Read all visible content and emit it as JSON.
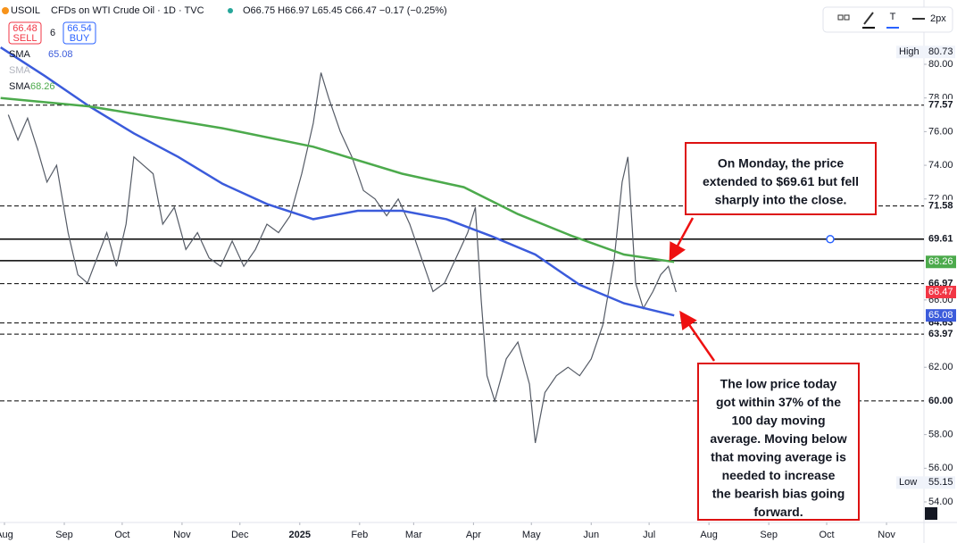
{
  "chart_data": {
    "type": "line",
    "title": "CFDs on WTI Crude Oil · 1D · TVC",
    "quote": "O66.75 H66.97 L65.45 C66.47 −0.17 (−0.25%)",
    "sell": {
      "price": 66.48,
      "label": "SELL"
    },
    "spread": 6,
    "buy": {
      "price": 66.54,
      "label": "BUY"
    },
    "toolbar_width": "2px",
    "xlim": [
      -2.31,
      476.4
    ],
    "ylim": [
      52.78,
      83.82
    ],
    "xticks": [
      {
        "value": 0,
        "label": "Aug"
      },
      {
        "value": 31,
        "label": "Sep"
      },
      {
        "value": 61,
        "label": "Oct"
      },
      {
        "value": 92,
        "label": "Nov"
      },
      {
        "value": 122,
        "label": "Dec"
      },
      {
        "value": 153,
        "label": "2025"
      },
      {
        "value": 184,
        "label": "Feb"
      },
      {
        "value": 212,
        "label": "Mar"
      },
      {
        "value": 243,
        "label": "Apr"
      },
      {
        "value": 273,
        "label": "May"
      },
      {
        "value": 304,
        "label": "Jun"
      },
      {
        "value": 334,
        "label": "Jul"
      },
      {
        "value": 365,
        "label": "Aug"
      },
      {
        "value": 396,
        "label": "Sep"
      },
      {
        "value": 426,
        "label": "Oct"
      },
      {
        "value": 457,
        "label": "Nov"
      }
    ],
    "yticks": [
      {
        "value": 80,
        "label": "80.00"
      },
      {
        "value": 78,
        "label": "78.00"
      },
      {
        "value": 76,
        "label": "76.00"
      },
      {
        "value": 74,
        "label": "74.00"
      },
      {
        "value": 72,
        "label": "72.00"
      },
      {
        "value": 66,
        "label": "66.00"
      },
      {
        "value": 62,
        "label": "62.00"
      },
      {
        "value": 58,
        "label": "58.00"
      },
      {
        "value": 56,
        "label": "56.00"
      },
      {
        "value": 54,
        "label": "54.00"
      }
    ],
    "grid": false,
    "series": [
      {
        "name": "USOIL",
        "color": "#555b66",
        "x": [
          2,
          7,
          12,
          17,
          22,
          27,
          33,
          38,
          43,
          48,
          53,
          58,
          63,
          67,
          72,
          77,
          82,
          88,
          94,
          100,
          106,
          112,
          118,
          124,
          130,
          136,
          142,
          148,
          154,
          160,
          164,
          168,
          174,
          180,
          186,
          192,
          198,
          204,
          210,
          216,
          222,
          228,
          234,
          240,
          244,
          247,
          250,
          254,
          260,
          266,
          272,
          275,
          280,
          286,
          292,
          298,
          304,
          310,
          316,
          320,
          323,
          327,
          331,
          336,
          340,
          344,
          348
        ],
        "values": [
          77.0,
          75.5,
          76.8,
          75.0,
          73.0,
          74.0,
          70.0,
          67.5,
          67.0,
          68.5,
          70.0,
          68.0,
          70.5,
          74.5,
          74.0,
          73.5,
          70.5,
          71.5,
          69.0,
          70.0,
          68.5,
          68.0,
          69.5,
          68.0,
          69.0,
          70.5,
          70.0,
          71.0,
          73.5,
          76.5,
          79.5,
          78.0,
          76.0,
          74.5,
          72.5,
          72.0,
          71.0,
          72.0,
          70.5,
          68.5,
          66.5,
          67.0,
          68.5,
          70.0,
          71.5,
          66.0,
          61.5,
          60.0,
          62.5,
          63.5,
          61.0,
          57.5,
          60.5,
          61.5,
          62.0,
          61.5,
          62.5,
          64.5,
          68.5,
          73.0,
          74.5,
          67.0,
          65.5,
          66.5,
          67.5,
          68.0,
          66.47
        ]
      },
      {
        "name": "SMA",
        "color": "#3b5bdb",
        "x": [
          -2,
          21,
          44,
          67,
          90,
          113,
          136,
          160,
          183,
          206,
          229,
          252,
          275,
          298,
          321,
          347
        ],
        "values": [
          81.0,
          79.3,
          77.5,
          75.9,
          74.5,
          72.9,
          71.7,
          70.8,
          71.3,
          71.3,
          70.8,
          69.8,
          68.7,
          66.9,
          65.8,
          65.08
        ]
      },
      {
        "name": "SMA",
        "color": "#4caa4c",
        "x": [
          -2,
          44,
          113,
          160,
          206,
          238,
          266,
          294,
          321,
          347
        ],
        "values": [
          78.0,
          77.5,
          76.2,
          75.1,
          73.5,
          72.7,
          71.1,
          69.8,
          68.7,
          68.26
        ]
      }
    ],
    "levels": [
      {
        "value": 77.57,
        "style": "dashed"
      },
      {
        "value": 71.58,
        "style": "dashed"
      },
      {
        "value": 69.61,
        "style": "solid"
      },
      {
        "value": 68.33,
        "style": "solid"
      },
      {
        "value": 66.97,
        "style": "dashed"
      },
      {
        "value": 64.63,
        "style": "dashed"
      },
      {
        "value": 63.97,
        "style": "dashed"
      },
      {
        "value": 60,
        "label": "60.00",
        "style": "dashed"
      }
    ],
    "high": {
      "label": "High",
      "value": 80.73
    },
    "low": {
      "label": "Low",
      "value": 55.15
    },
    "annotations": [
      {
        "lines": [
          "On Monday, the price",
          "extended to $69.61 but fell",
          "sharply into the close."
        ]
      },
      {
        "lines": [
          "The low price today",
          "got within 37% of the",
          "100 day moving",
          "average. Moving below",
          "that moving average is",
          "needed to increase",
          "the bearish bias going",
          "forward."
        ]
      }
    ]
  }
}
